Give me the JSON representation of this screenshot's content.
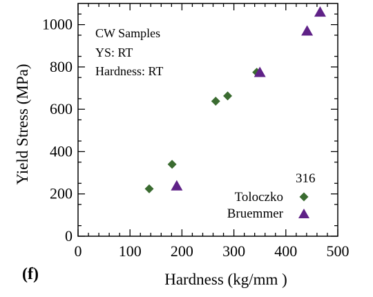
{
  "chart_data": {
    "type": "scatter",
    "xlabel": "Hardness (kg/mm )",
    "ylabel": "Yield Stress (MPa)",
    "xlim": [
      0,
      500
    ],
    "ylim": [
      0,
      1100
    ],
    "x_ticks": [
      0,
      100,
      200,
      300,
      400,
      500
    ],
    "y_ticks": [
      0,
      200,
      400,
      600,
      800,
      1000
    ],
    "grid": false,
    "legend_position": "bottom-right",
    "legend_title": "316",
    "annotations": [
      "CW Samples",
      "YS:  RT",
      "Hardness:  RT"
    ],
    "panel_label": "(f)",
    "series": [
      {
        "name": "Toloczko",
        "marker": "diamond",
        "color": "#3a6b30",
        "x": [
          137,
          181,
          265,
          288,
          344
        ],
        "y": [
          224,
          340,
          638,
          663,
          775
        ]
      },
      {
        "name": "Bruemmer",
        "marker": "triangle",
        "color": "#5f2187",
        "x": [
          190,
          350,
          441,
          466
        ],
        "y": [
          236,
          772,
          968,
          1057
        ]
      }
    ]
  }
}
